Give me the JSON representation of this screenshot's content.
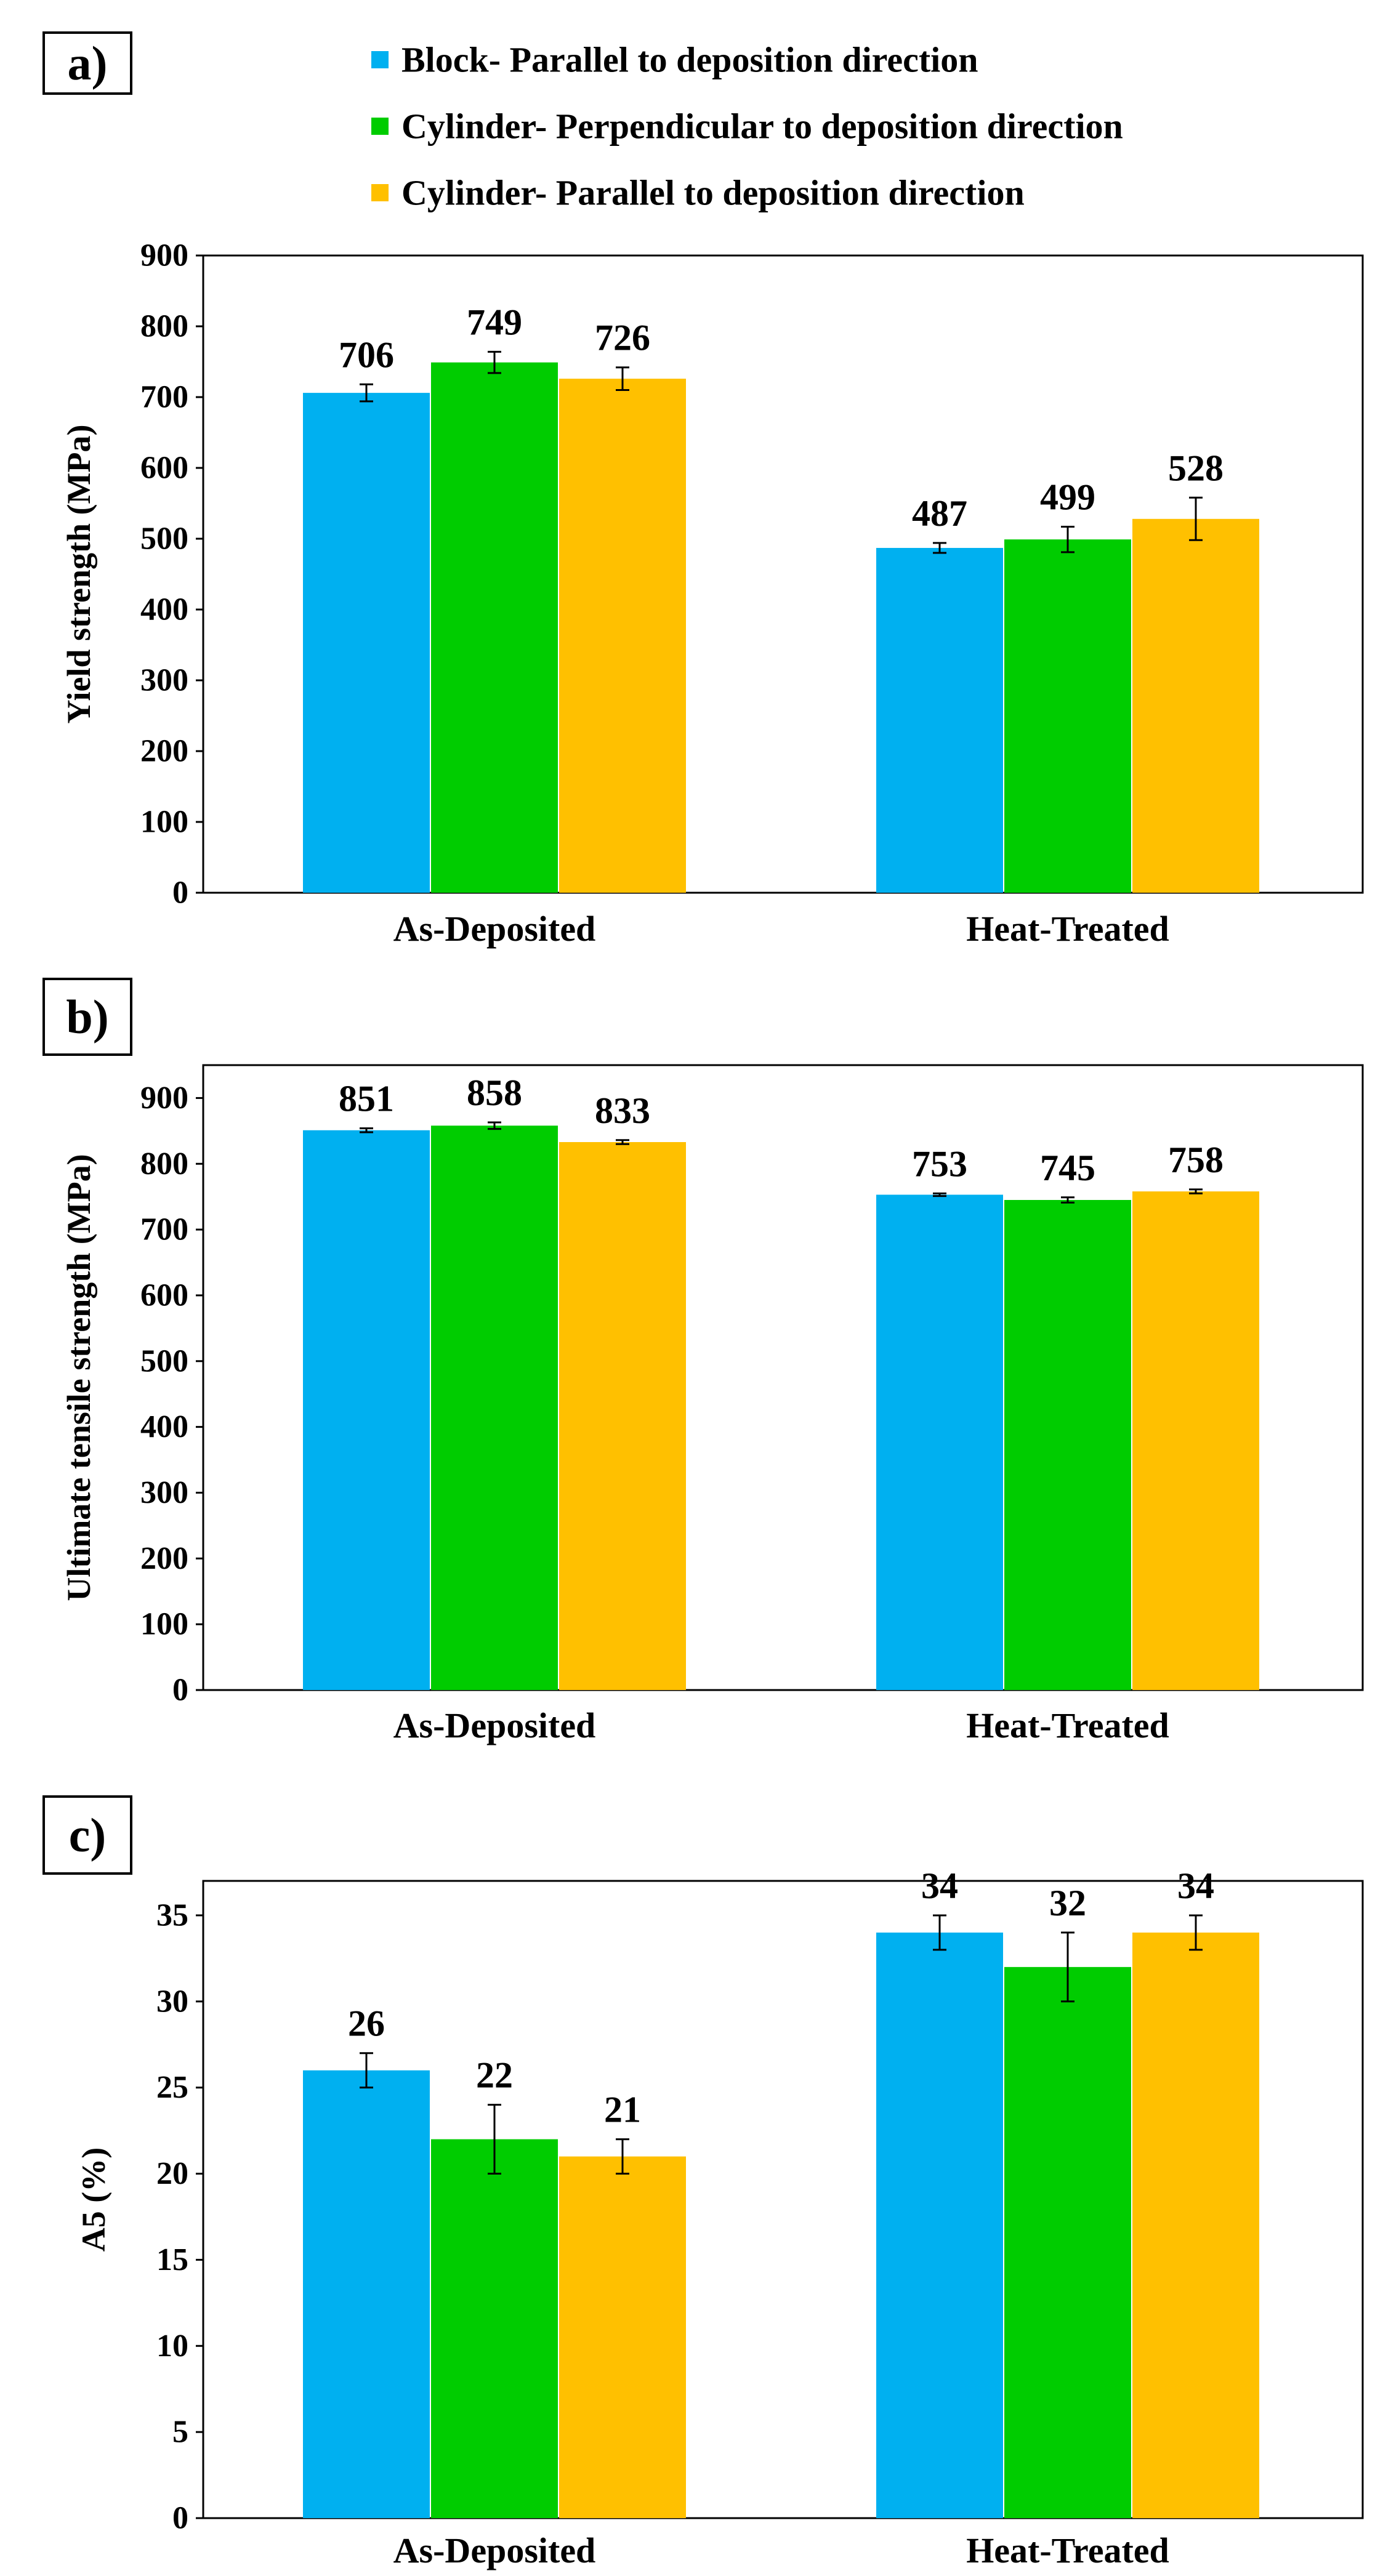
{
  "legend": {
    "items": [
      {
        "label": "Block- Parallel to deposition direction",
        "color": "#00b0f0"
      },
      {
        "label": "Cylinder- Perpendicular to deposition direction",
        "color": "#00cc00"
      },
      {
        "label": "Cylinder- Parallel to deposition direction",
        "color": "#ffc000"
      }
    ]
  },
  "chart_data": [
    {
      "panel_label": "a)",
      "type": "bar",
      "ylabel": "Yield strength (MPa)",
      "ylim": [
        0,
        900
      ],
      "yticks": [
        0,
        100,
        200,
        300,
        400,
        500,
        600,
        700,
        800,
        900
      ],
      "categories": [
        "As-Deposited",
        "Heat-Treated"
      ],
      "series": [
        {
          "name": "Block- Parallel to deposition direction",
          "values": [
            706,
            487
          ],
          "errors": [
            12,
            7
          ],
          "labels": [
            "706",
            "487"
          ]
        },
        {
          "name": "Cylinder- Perpendicular to deposition direction",
          "values": [
            749,
            499
          ],
          "errors": [
            15,
            18
          ],
          "labels": [
            "749",
            "499"
          ]
        },
        {
          "name": "Cylinder- Parallel to deposition direction",
          "values": [
            726,
            528
          ],
          "errors": [
            16,
            30
          ],
          "labels": [
            "726",
            "528"
          ]
        }
      ]
    },
    {
      "panel_label": "b)",
      "type": "bar",
      "ylabel": "Ultimate tensile strength (MPa)",
      "ylim": [
        0,
        950
      ],
      "yticks": [
        0,
        100,
        200,
        300,
        400,
        500,
        600,
        700,
        800,
        900
      ],
      "categories": [
        "As-Deposited",
        "Heat-Treated"
      ],
      "series": [
        {
          "name": "Block- Parallel to deposition direction",
          "values": [
            851,
            753
          ],
          "errors": [
            3,
            2
          ],
          "labels": [
            "851",
            "753"
          ]
        },
        {
          "name": "Cylinder- Perpendicular to deposition direction",
          "values": [
            858,
            745
          ],
          "errors": [
            5,
            4
          ],
          "labels": [
            "858",
            "745"
          ]
        },
        {
          "name": "Cylinder- Parallel to deposition direction",
          "values": [
            833,
            758
          ],
          "errors": [
            3,
            3
          ],
          "labels": [
            "833",
            "758"
          ]
        }
      ]
    },
    {
      "panel_label": "c)",
      "type": "bar",
      "ylabel": "A5 (%)",
      "ylim": [
        0,
        37
      ],
      "yticks": [
        0,
        5,
        10,
        15,
        20,
        25,
        30,
        35
      ],
      "categories": [
        "As-Deposited",
        "Heat-Treated"
      ],
      "series": [
        {
          "name": "Block- Parallel to deposition direction",
          "values": [
            26,
            34
          ],
          "errors": [
            1,
            1
          ],
          "labels": [
            "26",
            "34"
          ]
        },
        {
          "name": "Cylinder- Perpendicular to deposition direction",
          "values": [
            22,
            32
          ],
          "errors": [
            2,
            2
          ],
          "labels": [
            "22",
            "32"
          ]
        },
        {
          "name": "Cylinder- Parallel to deposition direction",
          "values": [
            21,
            34
          ],
          "errors": [
            1,
            1
          ],
          "labels": [
            "21",
            "34"
          ]
        }
      ]
    }
  ]
}
